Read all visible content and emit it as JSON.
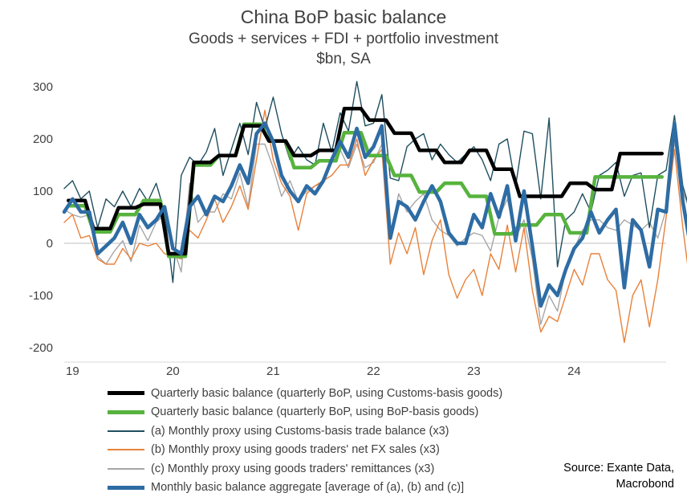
{
  "chart_data": {
    "type": "line",
    "title": "China BoP basic balance",
    "subtitle": "Goods + services + FDI + portfolio investment",
    "unit": "$bn, SA",
    "ylim": [
      -200,
      300
    ],
    "yticks": [
      "300",
      "200",
      "100",
      "0",
      "-100",
      "-200"
    ],
    "ytick_values": [
      300,
      200,
      100,
      0,
      -100,
      -200
    ],
    "xlim": [
      2019.0,
      2025.0
    ],
    "xtick_labels": [
      "19",
      "20",
      "21",
      "22",
      "23",
      "24"
    ],
    "xtick_values": [
      2019,
      2020,
      2021,
      2022,
      2023,
      2024
    ],
    "grid": false,
    "legend_placement": "bottom",
    "series": [
      {
        "name": "Quarterly basic balance (quarterly BoP, using Customs-basis goods)",
        "style": "quarterly",
        "color": "#000000",
        "values": [
          82,
          28,
          68,
          75,
          -20,
          155,
          168,
          225,
          196,
          168,
          178,
          258,
          236,
          211,
          178,
          155,
          178,
          142,
          90,
          90,
          115,
          103,
          172,
          172
        ]
      },
      {
        "name": "Quarterly basic balance (quarterly BoP, using BoP-basis goods)",
        "style": "quarterly",
        "color": "#57b33e",
        "values": [
          72,
          22,
          55,
          82,
          -25,
          150,
          168,
          228,
          196,
          145,
          158,
          212,
          168,
          130,
          98,
          115,
          90,
          18,
          35,
          55,
          20,
          127,
          127,
          127
        ]
      },
      {
        "name": "(a) Monthly proxy using Customs-basis trade balance (x3)",
        "style": "thin",
        "color": "#1f4e5f",
        "values": [
          105,
          120,
          85,
          100,
          30,
          85,
          70,
          100,
          70,
          105,
          80,
          115,
          60,
          -75,
          130,
          165,
          150,
          175,
          220,
          130,
          180,
          230,
          170,
          270,
          220,
          280,
          210,
          160,
          185,
          160,
          150,
          230,
          175,
          250,
          215,
          310,
          225,
          230,
          285,
          125,
          120,
          185,
          200,
          210,
          160,
          190,
          170,
          155,
          170,
          185,
          160,
          120,
          190,
          200,
          110,
          215,
          210,
          85,
          240,
          -45,
          45,
          60,
          95,
          60,
          130,
          140,
          155,
          90,
          130,
          135,
          30,
          130,
          140,
          245,
          110,
          55
        ]
      },
      {
        "name": "(b) Monthly proxy using  goods traders' net FX sales (x3)",
        "style": "thin",
        "color": "#e8813a",
        "values": [
          40,
          55,
          10,
          15,
          -30,
          -40,
          -40,
          -10,
          -30,
          0,
          -5,
          0,
          -20,
          -25,
          -30,
          25,
          10,
          45,
          85,
          40,
          70,
          110,
          65,
          160,
          255,
          160,
          115,
          90,
          25,
          95,
          110,
          120,
          130,
          150,
          150,
          200,
          130,
          160,
          180,
          -40,
          20,
          -20,
          30,
          -60,
          5,
          45,
          -60,
          -105,
          -70,
          -50,
          -100,
          -20,
          -50,
          35,
          -55,
          30,
          -90,
          -170,
          -140,
          -150,
          -100,
          -50,
          -80,
          -20,
          -20,
          -70,
          -90,
          -190,
          -100,
          -70,
          -160,
          -70,
          50,
          180,
          30,
          -95
        ]
      },
      {
        "name": "(c) Monthly proxy using  goods traders' remittances (x3)",
        "style": "thin",
        "color": "#a6a6a6",
        "values": [
          65,
          55,
          50,
          55,
          -25,
          -40,
          -15,
          5,
          -35,
          35,
          5,
          40,
          55,
          -5,
          -55,
          115,
          40,
          60,
          60,
          95,
          85,
          135,
          70,
          190,
          190,
          145,
          90,
          120,
          80,
          100,
          110,
          115,
          165,
          180,
          145,
          190,
          145,
          155,
          190,
          10,
          95,
          60,
          80,
          95,
          45,
          25,
          15,
          -5,
          10,
          20,
          15,
          -15,
          50,
          85,
          10,
          45,
          -30,
          -155,
          -100,
          -130,
          -50,
          -10,
          25,
          45,
          45,
          30,
          25,
          45,
          35,
          25,
          40,
          10,
          65,
          195,
          100,
          55
        ]
      },
      {
        "name": "Monthly basic balance aggregate [average of (a), (b) and (c)]",
        "style": "thick",
        "color": "#2e6ca4",
        "values": [
          60,
          85,
          60,
          60,
          -20,
          -5,
          10,
          40,
          0,
          55,
          30,
          45,
          70,
          -10,
          -20,
          70,
          90,
          55,
          90,
          80,
          110,
          150,
          115,
          210,
          230,
          195,
          130,
          100,
          80,
          110,
          95,
          120,
          160,
          195,
          165,
          220,
          165,
          185,
          225,
          10,
          80,
          70,
          45,
          80,
          110,
          80,
          20,
          0,
          0,
          55,
          30,
          95,
          50,
          110,
          5,
          100,
          -5,
          -120,
          -80,
          -100,
          -50,
          -10,
          10,
          60,
          20,
          45,
          65,
          -85,
          45,
          25,
          -45,
          65,
          60,
          230,
          80,
          -15
        ]
      }
    ]
  },
  "legend": {
    "items": [
      {
        "label": "Quarterly basic balance (quarterly BoP, using Customs-basis goods)",
        "color": "#000000",
        "style": "thick"
      },
      {
        "label": "Quarterly basic balance (quarterly BoP, using BoP-basis goods)",
        "color": "#57b33e",
        "style": "thick"
      },
      {
        "label": "(a) Monthly proxy using Customs-basis trade balance (x3)",
        "color": "#1f4e5f",
        "style": "thin"
      },
      {
        "label": "(b) Monthly proxy using  goods traders' net FX sales (x3)",
        "color": "#e8813a",
        "style": "thin"
      },
      {
        "label": "(c) Monthly proxy using  goods traders' remittances (x3)",
        "color": "#a6a6a6",
        "style": "thin"
      },
      {
        "label": "Monthly basic balance aggregate [average of (a), (b) and (c)]",
        "color": "#2e6ca4",
        "style": "thick"
      }
    ]
  },
  "source": {
    "line1": "Source: Exante Data,",
    "line2": "Macrobond"
  }
}
